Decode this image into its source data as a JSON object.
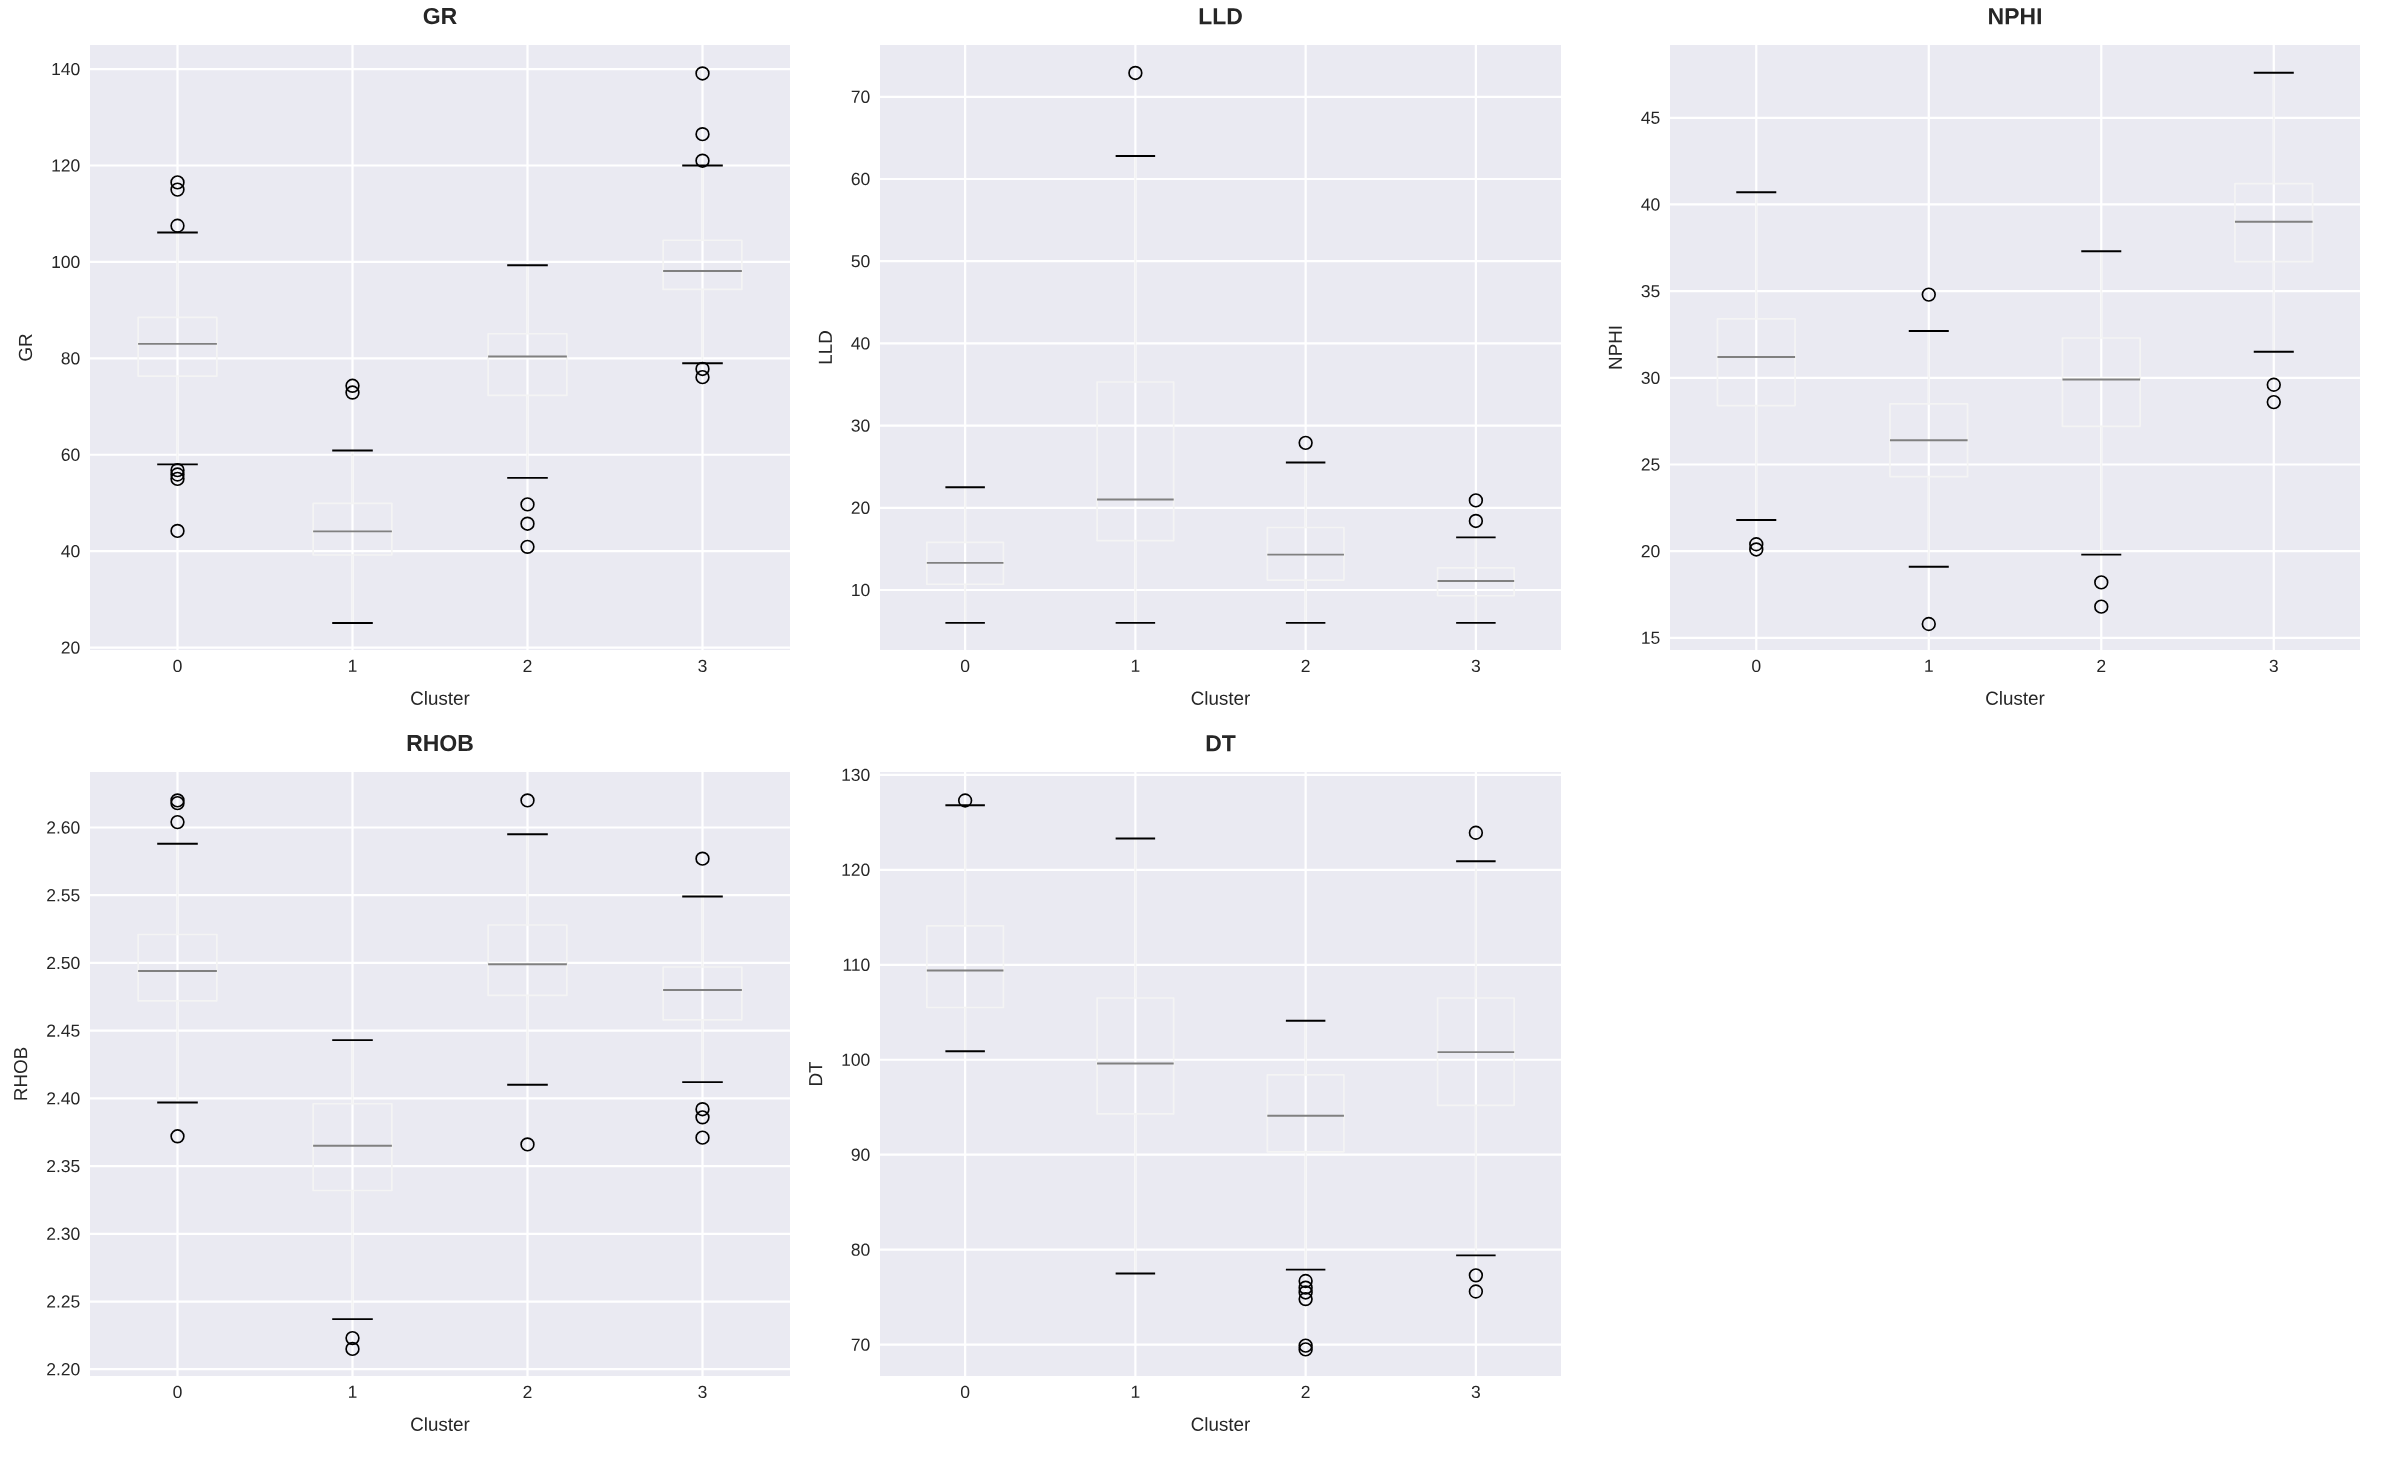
{
  "chart_data": [
    {
      "type": "box",
      "title": "GR",
      "xlabel": "Cluster",
      "ylabel": "GR",
      "categories": [
        "0",
        "1",
        "2",
        "3"
      ],
      "ylim": [
        19.5,
        145
      ],
      "yticks": [
        20,
        40,
        60,
        80,
        100,
        120,
        140
      ],
      "grid": true,
      "marker": "circle",
      "boxes": [
        {
          "low": 58.0,
          "q1": 76.3,
          "median": 83.0,
          "q3": 88.5,
          "high": 106.1,
          "outliers": [
            116.5,
            115.0,
            107.5,
            56.8,
            55.9,
            55.0,
            44.2
          ]
        },
        {
          "low": 25.1,
          "q1": 39.2,
          "median": 44.1,
          "q3": 49.9,
          "high": 60.9,
          "outliers": [
            74.3,
            72.9
          ]
        },
        {
          "low": 55.2,
          "q1": 72.3,
          "median": 80.4,
          "q3": 85.1,
          "high": 99.3,
          "outliers": [
            49.7,
            45.7,
            40.9
          ]
        },
        {
          "low": 79.0,
          "q1": 94.3,
          "median": 98.1,
          "q3": 104.5,
          "high": 120.0,
          "outliers": [
            139.1,
            126.5,
            121.0,
            77.8,
            76.1
          ]
        }
      ]
    },
    {
      "type": "box",
      "title": "LLD",
      "xlabel": "Cluster",
      "ylabel": "LLD",
      "categories": [
        "0",
        "1",
        "2",
        "3"
      ],
      "ylim": [
        2.7,
        76.3
      ],
      "yticks": [
        10,
        20,
        30,
        40,
        50,
        60,
        70
      ],
      "grid": true,
      "marker": "circle",
      "boxes": [
        {
          "low": 6.0,
          "q1": 10.7,
          "median": 13.3,
          "q3": 15.8,
          "high": 22.5
        },
        {
          "low": 6.0,
          "q1": 16.0,
          "median": 21.0,
          "q3": 35.3,
          "high": 62.8,
          "outliers": [
            72.9
          ]
        },
        {
          "low": 6.0,
          "q1": 11.2,
          "median": 14.3,
          "q3": 17.6,
          "high": 25.5,
          "outliers": [
            27.9
          ]
        },
        {
          "low": 6.0,
          "q1": 9.3,
          "median": 11.1,
          "q3": 12.7,
          "high": 16.4,
          "outliers": [
            20.9,
            18.4
          ]
        }
      ]
    },
    {
      "type": "box",
      "title": "NPHI",
      "xlabel": "Cluster",
      "ylabel": "NPHI",
      "categories": [
        "0",
        "1",
        "2",
        "3"
      ],
      "ylim": [
        14.3,
        49.2
      ],
      "yticks": [
        15,
        20,
        25,
        30,
        35,
        40,
        45
      ],
      "grid": true,
      "marker": "circle",
      "boxes": [
        {
          "low": 21.8,
          "q1": 28.4,
          "median": 31.2,
          "q3": 33.4,
          "high": 40.7,
          "outliers": [
            20.4,
            20.1
          ]
        },
        {
          "low": 19.1,
          "q1": 24.3,
          "median": 26.4,
          "q3": 28.5,
          "high": 32.7,
          "outliers": [
            34.8,
            15.8
          ]
        },
        {
          "low": 19.8,
          "q1": 27.2,
          "median": 29.9,
          "q3": 32.3,
          "high": 37.3,
          "outliers": [
            18.2,
            16.8
          ]
        },
        {
          "low": 31.5,
          "q1": 36.7,
          "median": 39.0,
          "q3": 41.2,
          "high": 47.6,
          "outliers": [
            29.6,
            28.6
          ]
        }
      ]
    },
    {
      "type": "box",
      "title": "RHOB",
      "xlabel": "Cluster",
      "ylabel": "RHOB",
      "categories": [
        "0",
        "1",
        "2",
        "3"
      ],
      "ylim": [
        2.195,
        2.641
      ],
      "yticks": [
        {
          "value": 2.2,
          "label": "2.20"
        },
        {
          "value": 2.25,
          "label": "2.25"
        },
        {
          "value": 2.3,
          "label": "2.30"
        },
        {
          "value": 2.35,
          "label": "2.35"
        },
        {
          "value": 2.4,
          "label": "2.40"
        },
        {
          "value": 2.45,
          "label": "2.45"
        },
        {
          "value": 2.5,
          "label": "2.50"
        },
        {
          "value": 2.55,
          "label": "2.55"
        },
        {
          "value": 2.6,
          "label": "2.60"
        }
      ],
      "grid": true,
      "marker": "circle",
      "boxes": [
        {
          "low": 2.397,
          "q1": 2.472,
          "median": 2.494,
          "q3": 2.521,
          "high": 2.588,
          "outliers": [
            2.62,
            2.618,
            2.604,
            2.372
          ]
        },
        {
          "low": 2.237,
          "q1": 2.332,
          "median": 2.365,
          "q3": 2.396,
          "high": 2.443,
          "outliers": [
            2.223,
            2.215
          ]
        },
        {
          "low": 2.41,
          "q1": 2.476,
          "median": 2.499,
          "q3": 2.528,
          "high": 2.595,
          "outliers": [
            2.62,
            2.366
          ]
        },
        {
          "low": 2.412,
          "q1": 2.458,
          "median": 2.48,
          "q3": 2.497,
          "high": 2.549,
          "outliers": [
            2.577,
            2.392,
            2.386,
            2.371
          ]
        }
      ]
    },
    {
      "type": "box",
      "title": "DT",
      "xlabel": "Cluster",
      "ylabel": "DT",
      "categories": [
        "0",
        "1",
        "2",
        "3"
      ],
      "ylim": [
        66.7,
        130.3
      ],
      "yticks": [
        70,
        80,
        90,
        100,
        110,
        120,
        130
      ],
      "grid": true,
      "marker": "circle",
      "boxes": [
        {
          "low": 100.9,
          "q1": 105.5,
          "median": 109.4,
          "q3": 114.1,
          "high": 126.8,
          "outliers": [
            127.3
          ]
        },
        {
          "low": 77.5,
          "q1": 94.3,
          "median": 99.6,
          "q3": 106.5,
          "high": 123.3
        },
        {
          "low": 77.9,
          "q1": 90.3,
          "median": 94.1,
          "q3": 98.4,
          "high": 104.1,
          "outliers": [
            76.7,
            76.0,
            75.5,
            74.8,
            69.9,
            69.5
          ]
        },
        {
          "low": 79.4,
          "q1": 95.2,
          "median": 100.8,
          "q3": 106.5,
          "high": 120.9,
          "outliers": [
            123.9,
            77.3,
            75.6
          ]
        }
      ]
    }
  ]
}
